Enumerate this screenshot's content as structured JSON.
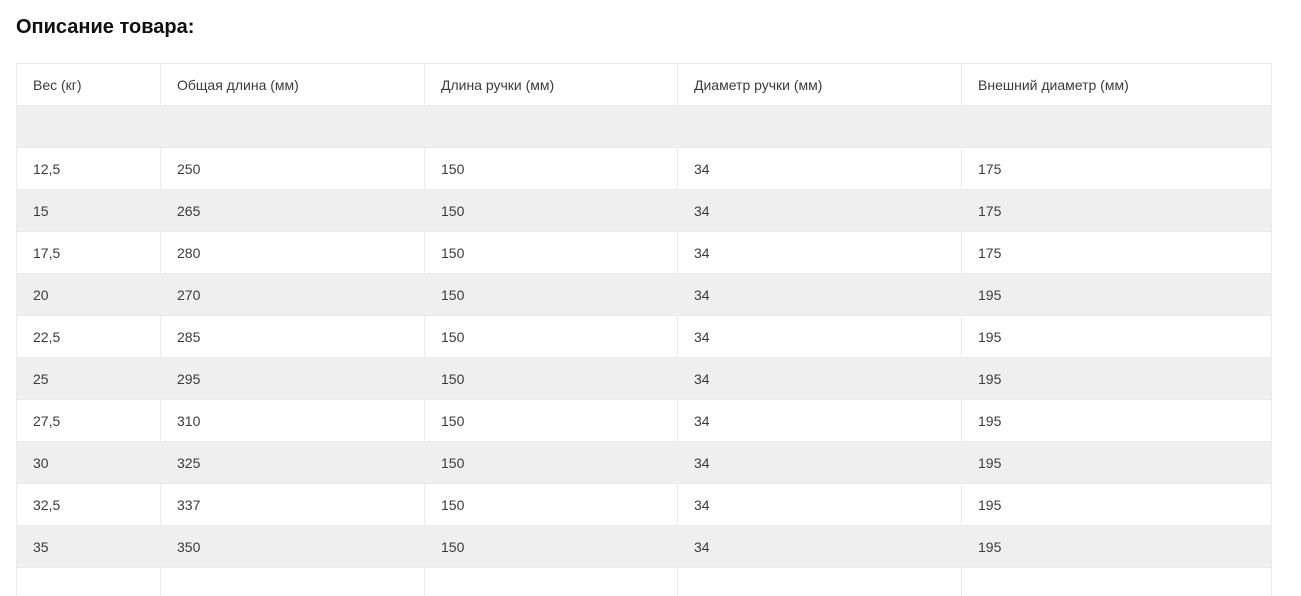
{
  "title": "Описание товара:",
  "table": {
    "headers": [
      "Вес (кг)",
      "Общая длина (мм)",
      "Длина ручки (мм)",
      "Диаметр ручки (мм)",
      "Внешний диаметр (мм)"
    ],
    "rows": [
      [
        "",
        "",
        "",
        "",
        ""
      ],
      [
        "12,5",
        "250",
        "150",
        "34",
        "175"
      ],
      [
        "15",
        "265",
        "150",
        "34",
        "175"
      ],
      [
        "17,5",
        "280",
        "150",
        "34",
        "175"
      ],
      [
        "20",
        "270",
        "150",
        "34",
        "195"
      ],
      [
        "22,5",
        "285",
        "150",
        "34",
        "195"
      ],
      [
        "25",
        "295",
        "150",
        "34",
        "195"
      ],
      [
        "27,5",
        "310",
        "150",
        "34",
        "195"
      ],
      [
        "30",
        "325",
        "150",
        "34",
        "195"
      ],
      [
        "32,5",
        "337",
        "150",
        "34",
        "195"
      ],
      [
        "35",
        "350",
        "150",
        "34",
        "195"
      ],
      [
        "",
        "",
        "",
        "",
        ""
      ]
    ],
    "stripe_color": "#efefef",
    "border_color": "#ebebeb",
    "text_color": "#3b3b3b"
  }
}
